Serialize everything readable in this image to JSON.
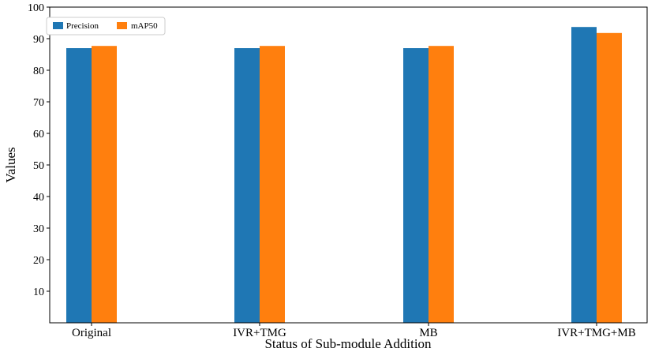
{
  "chart_data": {
    "type": "bar",
    "title": "",
    "xlabel": "Status of Sub-module Addition",
    "ylabel": "Values",
    "categories": [
      "Original",
      "IVR+TMG",
      "MB",
      "IVR+TMG+MB"
    ],
    "series": [
      {
        "name": "Precision",
        "color": "#1f77b4",
        "values": [
          87.0,
          87.0,
          87.0,
          93.7
        ]
      },
      {
        "name": "mAP50",
        "color": "#ff7f0e",
        "values": [
          87.7,
          87.7,
          87.7,
          91.8
        ]
      }
    ],
    "ylim": [
      0,
      100
    ],
    "yticks": [
      10,
      20,
      30,
      40,
      50,
      60,
      70,
      80,
      90,
      100
    ],
    "legend": {
      "placement": "top-left"
    },
    "grid": false
  }
}
